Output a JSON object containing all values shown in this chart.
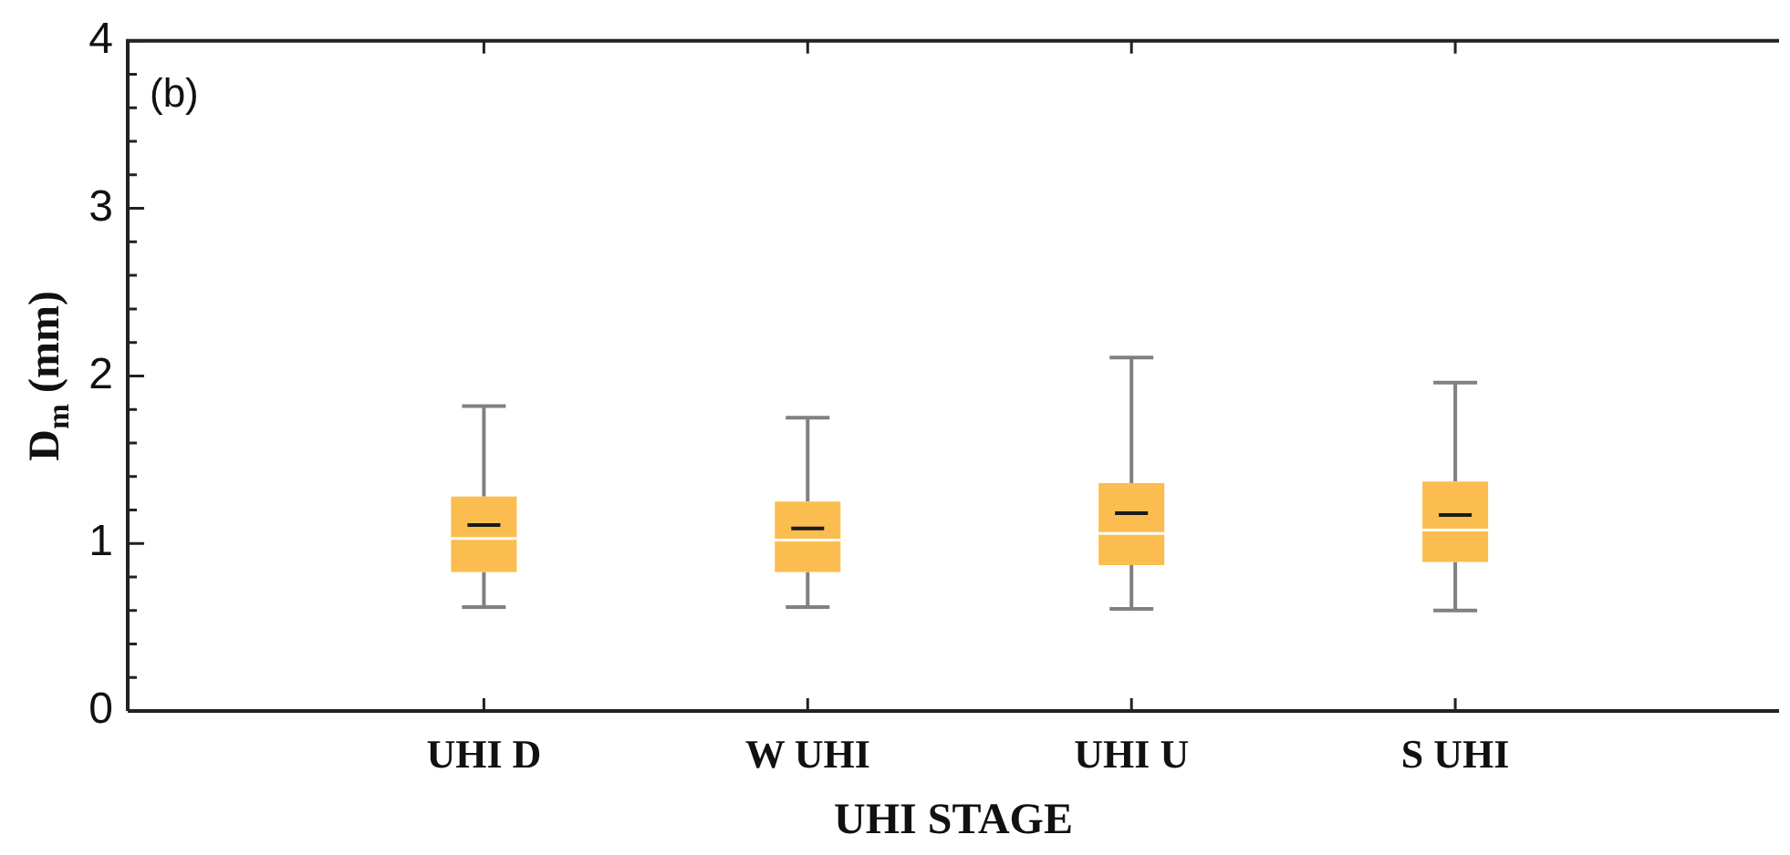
{
  "chart_data": {
    "type": "box",
    "xlabel": "UHI STAGE",
    "ylabel": "D$_{m}$ (mm)",
    "annotations": [
      "(b)"
    ],
    "categories": [
      "UHI D",
      "W UHI",
      "UHI U",
      "S UHI"
    ],
    "color": "#fbbd4f",
    "boxes": [
      {
        "low": 0.62,
        "q1": 0.83,
        "median": 1.03,
        "q3": 1.28,
        "high": 1.82,
        "mean": 1.11
      },
      {
        "low": 0.62,
        "q1": 0.83,
        "median": 1.02,
        "q3": 1.25,
        "high": 1.75,
        "mean": 1.09
      },
      {
        "low": 0.61,
        "q1": 0.87,
        "median": 1.06,
        "q3": 1.36,
        "high": 2.11,
        "mean": 1.18
      },
      {
        "low": 0.6,
        "q1": 0.89,
        "median": 1.08,
        "q3": 1.37,
        "high": 1.96,
        "mean": 1.17
      }
    ],
    "ylim": [
      0,
      4
    ],
    "yticks": [
      0,
      1,
      2,
      3,
      4
    ]
  }
}
